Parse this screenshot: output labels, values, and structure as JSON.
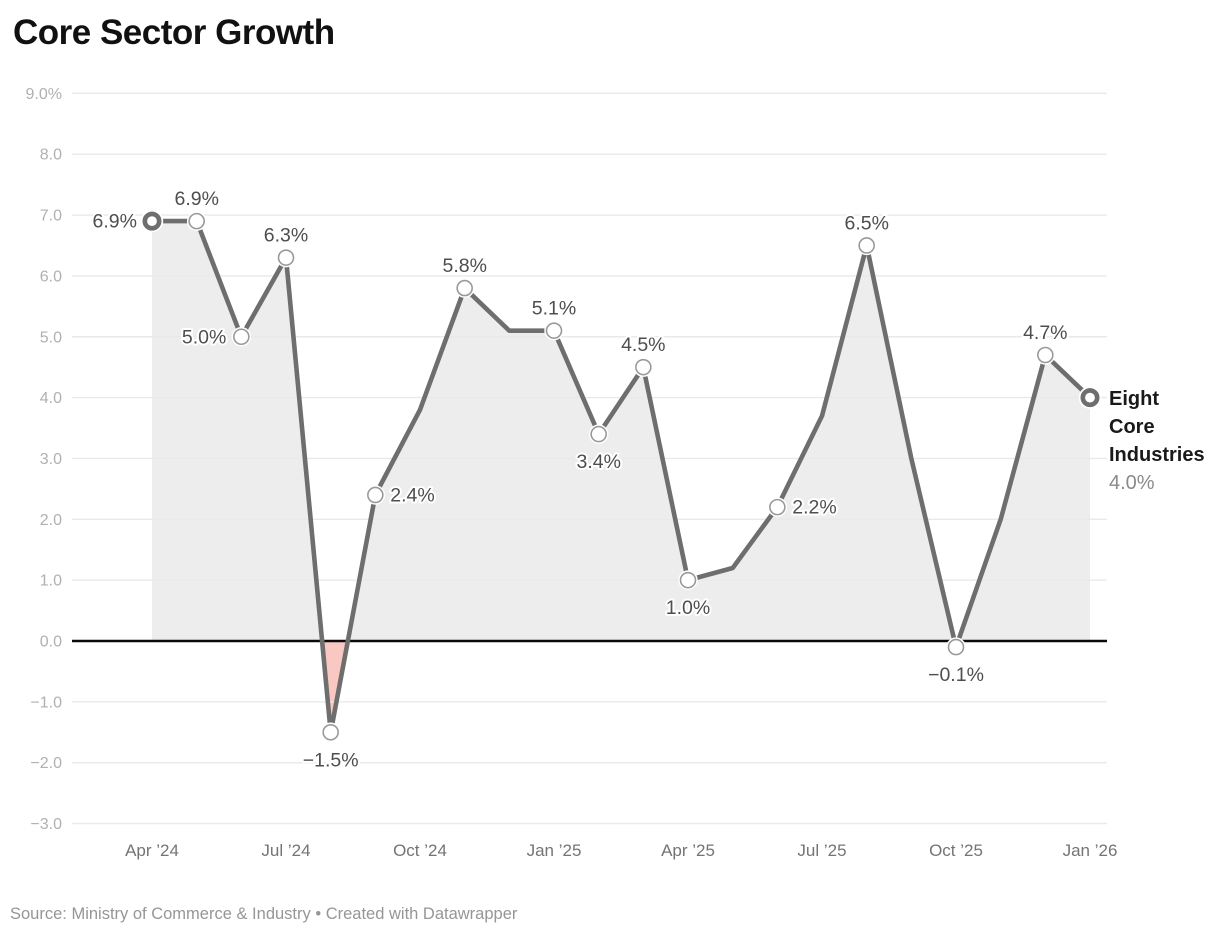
{
  "title": "Core Sector Growth",
  "footer": "Source: Ministry of Commerce & Industry • Created with Datawrapper",
  "annotation": {
    "line1": "Eight",
    "line2": "Core",
    "line3": "Industries",
    "value": "4.0%"
  },
  "chart_data": {
    "type": "line",
    "title": "Core Sector Growth",
    "series_name": "Eight Core Industries",
    "x": [
      "Apr ’24",
      "May ’24",
      "Jun ’24",
      "Jul ’24",
      "Aug ’24",
      "Sep ’24",
      "Oct ’24",
      "Nov ’24",
      "Dec ’24",
      "Jan ’25",
      "Feb ’25",
      "Mar ’25",
      "Apr ’25",
      "May ’25",
      "Jun ’25",
      "Jul ’25",
      "Aug ’25",
      "Sep ’25",
      "Oct ’25",
      "Nov ’25",
      "Dec ’25",
      "Jan ’26"
    ],
    "values": [
      6.9,
      6.9,
      5.0,
      6.3,
      -1.5,
      2.4,
      3.8,
      5.8,
      5.1,
      5.1,
      3.4,
      4.5,
      1.0,
      1.2,
      2.2,
      3.7,
      6.5,
      3.0,
      -0.1,
      2.0,
      4.7,
      4.0
    ],
    "point_labels": [
      "6.9%",
      "6.9%",
      "5.0%",
      "6.3%",
      "−1.5%",
      "2.4%",
      null,
      "5.8%",
      null,
      "5.1%",
      "3.4%",
      "4.5%",
      "1.0%",
      null,
      "2.2%",
      null,
      "6.5%",
      null,
      "−0.1%",
      null,
      "4.7%",
      "4.0%"
    ],
    "label_positions": [
      "left",
      "above",
      "left",
      "above",
      "below",
      "right",
      null,
      "above",
      null,
      "above",
      "below",
      "above",
      "below",
      null,
      "right",
      null,
      "above",
      null,
      "below",
      null,
      "above",
      "end"
    ],
    "x_tick_labels": [
      "Apr ’24",
      "Jul ’24",
      "Oct ’24",
      "Jan ’25",
      "Apr ’25",
      "Jul ’25",
      "Oct ’25",
      "Jan ’26"
    ],
    "x_tick_every": 3,
    "y_ticks": [
      {
        "v": 9,
        "label": "9.0%"
      },
      {
        "v": 8,
        "label": "8.0"
      },
      {
        "v": 7,
        "label": "7.0"
      },
      {
        "v": 6,
        "label": "6.0"
      },
      {
        "v": 5,
        "label": "5.0"
      },
      {
        "v": 4,
        "label": "4.0"
      },
      {
        "v": 3,
        "label": "3.0"
      },
      {
        "v": 2,
        "label": "2.0"
      },
      {
        "v": 1,
        "label": "1.0"
      },
      {
        "v": 0,
        "label": "0.0"
      },
      {
        "v": -1,
        "label": "−1.0"
      },
      {
        "v": -2,
        "label": "−2.0"
      },
      {
        "v": -3,
        "label": "−3.0"
      }
    ],
    "ylim": [
      -3.4,
      9.5
    ],
    "baseline": 0,
    "grid": true,
    "legend_position": "right-of-last-point",
    "colors": {
      "line": "#6e6e6e",
      "marker_ring": "#9a9a9a",
      "area_positive": "#ededed",
      "area_negative": "#f9c8c2",
      "zero_line": "#0a0a0a",
      "grid": "#e9e9e9",
      "data_label": "#4e4e4e",
      "axis_x_label": "#747474",
      "axis_y_label": "#b0b0b0",
      "annotation_text": "#1a1a1a",
      "annotation_value": "#8a8a8a",
      "title": "#111111",
      "footer": "#969696"
    }
  }
}
